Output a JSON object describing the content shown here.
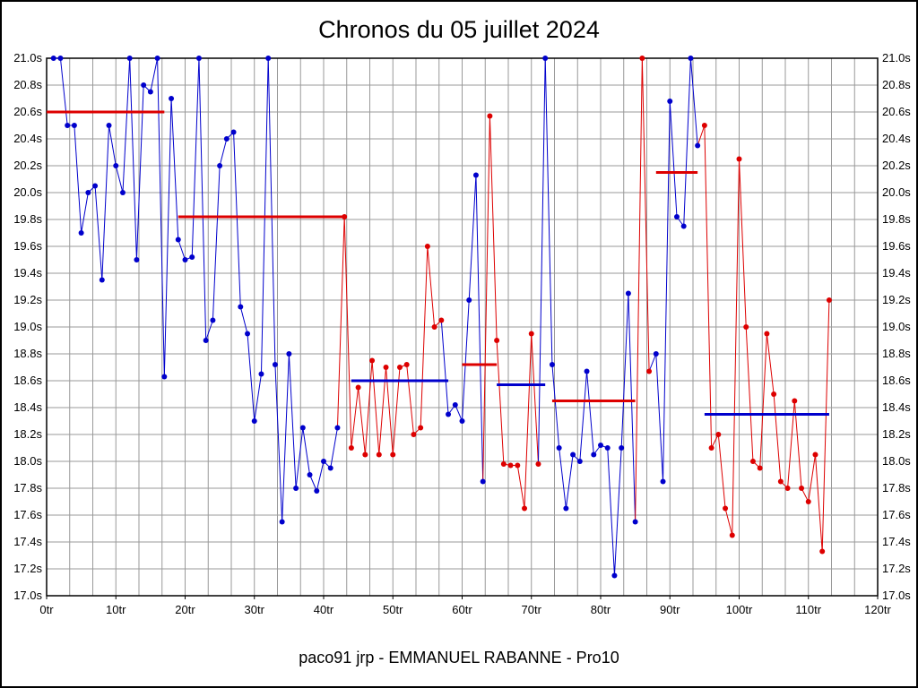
{
  "title": "Chronos du 05 juillet 2024",
  "footer": "paco91 jrp - EMMANUEL RABANNE - Pro10",
  "colors": {
    "blue": "#0000cc",
    "red": "#dd0000",
    "grid": "#999999",
    "axis": "#000000"
  },
  "chart_data": {
    "type": "line",
    "title": "Chronos du 05 juillet 2024",
    "xlabel_suffix": "tr",
    "ylabel_suffix": "s",
    "xlim": [
      0,
      120
    ],
    "ylim": [
      17.0,
      21.0
    ],
    "x_tick_step": 10,
    "y_tick_step": 0.2,
    "grid": true,
    "points": [
      [
        1,
        21.0,
        "b"
      ],
      [
        2,
        21.0,
        "b"
      ],
      [
        3,
        20.5,
        "b"
      ],
      [
        4,
        20.5,
        "b"
      ],
      [
        5,
        19.7,
        "b"
      ],
      [
        6,
        20.0,
        "b"
      ],
      [
        7,
        20.05,
        "b"
      ],
      [
        8,
        19.35,
        "b"
      ],
      [
        9,
        20.5,
        "b"
      ],
      [
        10,
        20.2,
        "b"
      ],
      [
        11,
        20.0,
        "b"
      ],
      [
        12,
        21.0,
        "b"
      ],
      [
        13,
        19.5,
        "b"
      ],
      [
        14,
        20.8,
        "b"
      ],
      [
        15,
        20.75,
        "b"
      ],
      [
        16,
        21.0,
        "b"
      ],
      [
        17,
        18.63,
        "b"
      ],
      [
        18,
        20.7,
        "b"
      ],
      [
        19,
        19.65,
        "b"
      ],
      [
        20,
        19.5,
        "b"
      ],
      [
        21,
        19.52,
        "b"
      ],
      [
        22,
        21.0,
        "b"
      ],
      [
        23,
        18.9,
        "b"
      ],
      [
        24,
        19.05,
        "b"
      ],
      [
        25,
        20.2,
        "b"
      ],
      [
        26,
        20.4,
        "b"
      ],
      [
        27,
        20.45,
        "b"
      ],
      [
        28,
        19.15,
        "b"
      ],
      [
        29,
        18.95,
        "b"
      ],
      [
        30,
        18.3,
        "b"
      ],
      [
        31,
        18.65,
        "b"
      ],
      [
        32,
        21.0,
        "b"
      ],
      [
        33,
        18.72,
        "b"
      ],
      [
        34,
        17.55,
        "b"
      ],
      [
        35,
        18.8,
        "b"
      ],
      [
        36,
        17.8,
        "b"
      ],
      [
        37,
        18.25,
        "b"
      ],
      [
        38,
        17.9,
        "b"
      ],
      [
        39,
        17.78,
        "b"
      ],
      [
        40,
        18.0,
        "b"
      ],
      [
        41,
        17.95,
        "b"
      ],
      [
        42,
        18.25,
        "b"
      ],
      [
        43,
        19.82,
        "r"
      ],
      [
        44,
        18.1,
        "r"
      ],
      [
        45,
        18.55,
        "r"
      ],
      [
        46,
        18.05,
        "r"
      ],
      [
        47,
        18.75,
        "r"
      ],
      [
        48,
        18.05,
        "r"
      ],
      [
        49,
        18.7,
        "r"
      ],
      [
        50,
        18.05,
        "r"
      ],
      [
        51,
        18.7,
        "r"
      ],
      [
        52,
        18.72,
        "r"
      ],
      [
        53,
        18.2,
        "r"
      ],
      [
        54,
        18.25,
        "r"
      ],
      [
        55,
        19.6,
        "r"
      ],
      [
        56,
        19.0,
        "r"
      ],
      [
        57,
        19.05,
        "r"
      ],
      [
        58,
        18.35,
        "b"
      ],
      [
        59,
        18.42,
        "b"
      ],
      [
        60,
        18.3,
        "b"
      ],
      [
        61,
        19.2,
        "b"
      ],
      [
        62,
        20.13,
        "b"
      ],
      [
        63,
        17.85,
        "b"
      ],
      [
        64,
        20.57,
        "r"
      ],
      [
        65,
        18.9,
        "r"
      ],
      [
        66,
        17.98,
        "r"
      ],
      [
        67,
        17.97,
        "r"
      ],
      [
        68,
        17.97,
        "r"
      ],
      [
        69,
        17.65,
        "r"
      ],
      [
        70,
        18.95,
        "r"
      ],
      [
        71,
        17.98,
        "r"
      ],
      [
        72,
        21.0,
        "b"
      ],
      [
        73,
        18.72,
        "b"
      ],
      [
        74,
        18.1,
        "b"
      ],
      [
        75,
        17.65,
        "b"
      ],
      [
        76,
        18.05,
        "b"
      ],
      [
        77,
        18.0,
        "b"
      ],
      [
        78,
        18.67,
        "b"
      ],
      [
        79,
        18.05,
        "b"
      ],
      [
        80,
        18.12,
        "b"
      ],
      [
        81,
        18.1,
        "b"
      ],
      [
        82,
        17.15,
        "b"
      ],
      [
        83,
        18.1,
        "b"
      ],
      [
        84,
        19.25,
        "b"
      ],
      [
        85,
        17.55,
        "b"
      ],
      [
        86,
        21.0,
        "r"
      ],
      [
        87,
        18.67,
        "r"
      ],
      [
        88,
        18.8,
        "b"
      ],
      [
        89,
        17.85,
        "b"
      ],
      [
        90,
        20.68,
        "b"
      ],
      [
        91,
        19.82,
        "b"
      ],
      [
        92,
        19.75,
        "b"
      ],
      [
        93,
        21.0,
        "b"
      ],
      [
        94,
        20.35,
        "b"
      ],
      [
        95,
        20.5,
        "r"
      ],
      [
        96,
        18.1,
        "r"
      ],
      [
        97,
        18.2,
        "r"
      ],
      [
        98,
        17.65,
        "r"
      ],
      [
        99,
        17.45,
        "r"
      ],
      [
        100,
        20.25,
        "r"
      ],
      [
        101,
        19.0,
        "r"
      ],
      [
        102,
        18.0,
        "r"
      ],
      [
        103,
        17.95,
        "r"
      ],
      [
        104,
        18.95,
        "r"
      ],
      [
        105,
        18.5,
        "r"
      ],
      [
        106,
        17.85,
        "r"
      ],
      [
        107,
        17.8,
        "r"
      ],
      [
        108,
        18.45,
        "r"
      ],
      [
        109,
        17.8,
        "r"
      ],
      [
        110,
        17.7,
        "r"
      ],
      [
        111,
        18.05,
        "r"
      ],
      [
        112,
        17.33,
        "r"
      ],
      [
        113,
        19.2,
        "r"
      ]
    ],
    "average_lines": [
      {
        "x1": 0,
        "x2": 17,
        "y": 20.6,
        "color": "red"
      },
      {
        "x1": 19,
        "x2": 43,
        "y": 19.82,
        "color": "red"
      },
      {
        "x1": 44,
        "x2": 58,
        "y": 18.6,
        "color": "blue"
      },
      {
        "x1": 60,
        "x2": 65,
        "y": 18.72,
        "color": "red"
      },
      {
        "x1": 65,
        "x2": 72,
        "y": 18.57,
        "color": "blue"
      },
      {
        "x1": 73,
        "x2": 85,
        "y": 18.45,
        "color": "red"
      },
      {
        "x1": 88,
        "x2": 94,
        "y": 20.15,
        "color": "red"
      },
      {
        "x1": 95,
        "x2": 113,
        "y": 18.35,
        "color": "blue"
      }
    ]
  }
}
